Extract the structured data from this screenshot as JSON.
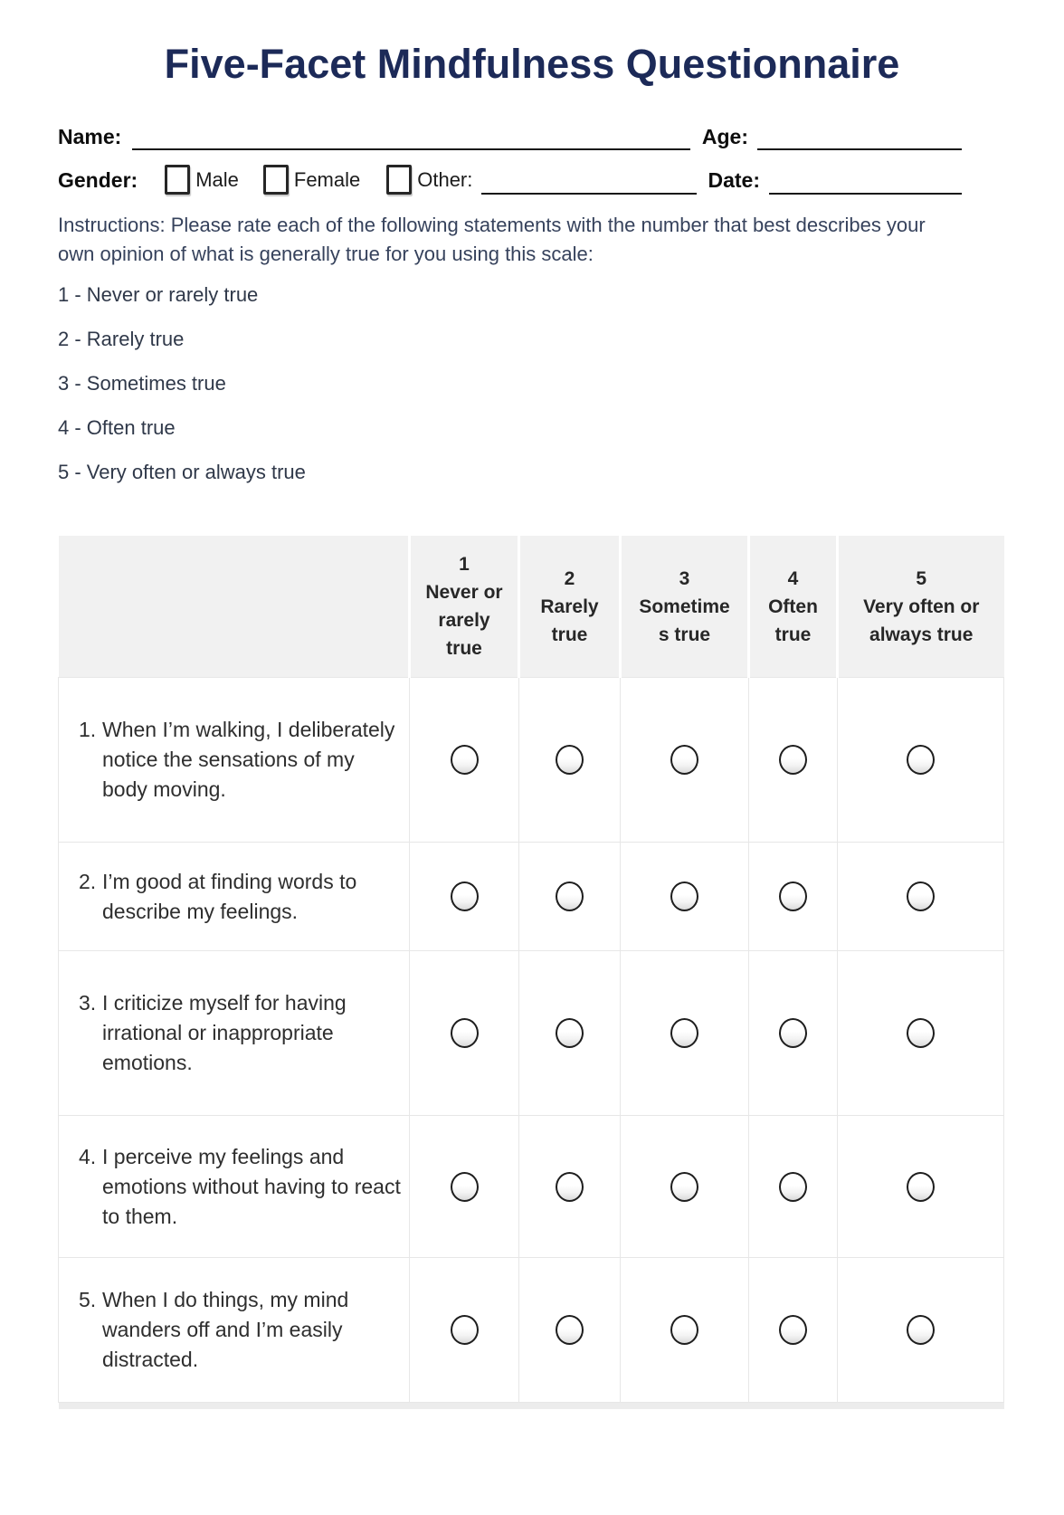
{
  "page": {
    "title": "Five-Facet Mindfulness Questionnaire"
  },
  "colors": {
    "title_navy": "#1c2a58",
    "header_bg": "#f1f1f1",
    "instructions_text": "#36425c"
  },
  "form": {
    "name_label": "Name:",
    "age_label": "Age:",
    "gender_label": "Gender:",
    "gender_options": [
      {
        "label": "Male"
      },
      {
        "label": "Female"
      },
      {
        "label": "Other:"
      }
    ],
    "date_label": "Date:"
  },
  "instructions": "Instructions: Please rate each of the following statements with the number that best describes your own opinion of what is generally true for you using this scale:",
  "scale": [
    "1 - Never or rarely true",
    "2 - Rarely true",
    "3 - Sometimes true",
    "4 - Often true",
    "5 - Very often or always true"
  ],
  "table": {
    "columns": [
      {
        "value": "1",
        "label_lines": [
          "Never or",
          "rarely",
          "true"
        ]
      },
      {
        "value": "2",
        "label_lines": [
          "Rarely",
          "true"
        ]
      },
      {
        "value": "3",
        "label_lines": [
          "Sometime",
          "s true"
        ]
      },
      {
        "value": "4",
        "label_lines": [
          "Often",
          "true"
        ]
      },
      {
        "value": "5",
        "label_lines": [
          "Very often or",
          "always true"
        ]
      }
    ],
    "questions": [
      {
        "number": "1.",
        "text": "When I’m walking, I deliberately notice the sensations of my body moving."
      },
      {
        "number": "2.",
        "text": "I’m good at finding words to describe my feelings."
      },
      {
        "number": "3.",
        "text": "I criticize myself for having irrational or inappropriate emotions."
      },
      {
        "number": "4.",
        "text": "I perceive my feelings and emotions without having to react to them."
      },
      {
        "number": "5.",
        "text": "When I do things, my mind wanders off and I’m easily distracted."
      }
    ]
  }
}
